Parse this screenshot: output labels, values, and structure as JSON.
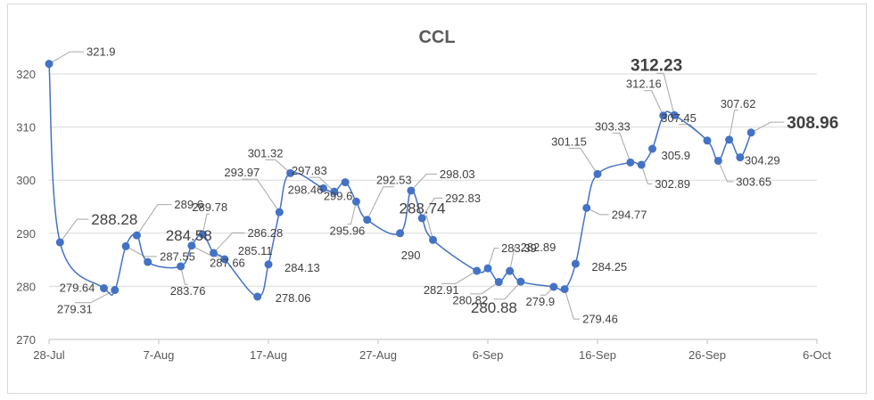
{
  "chart_data": {
    "type": "line",
    "title": "CCL",
    "xlabel": "",
    "ylabel": "",
    "x_ticks": [
      "28-Jul",
      "7-Aug",
      "17-Aug",
      "27-Aug",
      "6-Sep",
      "16-Sep",
      "26-Sep",
      "6-Oct"
    ],
    "y_ticks": [
      "270",
      "280",
      "290",
      "300",
      "310",
      "320"
    ],
    "ylim": [
      270,
      325
    ],
    "xlim": [
      "2021-07-28",
      "2021-10-06"
    ],
    "grid": true,
    "legend": "none",
    "series": [
      {
        "color": "#4472c4",
        "points": [
          {
            "date": "2021-07-28",
            "value": 321.9,
            "label": "321.9"
          },
          {
            "date": "2021-07-29",
            "value": 288.28,
            "label": "288.28",
            "emph": "large"
          },
          {
            "date": "2021-08-02",
            "value": 279.64,
            "label": "279.64"
          },
          {
            "date": "2021-08-03",
            "value": 279.31,
            "label": "279.31"
          },
          {
            "date": "2021-08-04",
            "value": 287.55,
            "label": "287.55"
          },
          {
            "date": "2021-08-05",
            "value": 289.6,
            "label": "289.6"
          },
          {
            "date": "2021-08-06",
            "value": 284.58,
            "label": "284.58",
            "emph": "large"
          },
          {
            "date": "2021-08-09",
            "value": 283.76,
            "label": "283.76"
          },
          {
            "date": "2021-08-10",
            "value": 287.66,
            "label": "287.66"
          },
          {
            "date": "2021-08-11",
            "value": 289.78,
            "label": "289.78"
          },
          {
            "date": "2021-08-12",
            "value": 286.28,
            "label": "286.28"
          },
          {
            "date": "2021-08-13",
            "value": 285.11,
            "label": "285.11"
          },
          {
            "date": "2021-08-16",
            "value": 278.06,
            "label": "278.06"
          },
          {
            "date": "2021-08-17",
            "value": 284.13,
            "label": "284.13"
          },
          {
            "date": "2021-08-18",
            "value": 293.97,
            "label": "293.97"
          },
          {
            "date": "2021-08-19",
            "value": 301.32,
            "label": "301.32"
          },
          {
            "date": "2021-08-22",
            "value": 298.46,
            "label": "298.46"
          },
          {
            "date": "2021-08-23",
            "value": 297.83,
            "label": "297.83"
          },
          {
            "date": "2021-08-24",
            "value": 299.6,
            "label": "299.6"
          },
          {
            "date": "2021-08-25",
            "value": 295.96,
            "label": "295.96"
          },
          {
            "date": "2021-08-26",
            "value": 292.53,
            "label": "292.53"
          },
          {
            "date": "2021-08-29",
            "value": 290,
            "label": "290"
          },
          {
            "date": "2021-08-30",
            "value": 298.03,
            "label": "298.03"
          },
          {
            "date": "2021-08-31",
            "value": 292.83,
            "label": "292.83"
          },
          {
            "date": "2021-09-01",
            "value": 288.74,
            "label": "288.74",
            "emph": "large"
          },
          {
            "date": "2021-09-05",
            "value": 282.91,
            "label": "282.91"
          },
          {
            "date": "2021-09-06",
            "value": 283.39,
            "label": "283.39"
          },
          {
            "date": "2021-09-07",
            "value": 280.82,
            "label": "280.82"
          },
          {
            "date": "2021-09-08",
            "value": 282.89,
            "label": "282.89"
          },
          {
            "date": "2021-09-09",
            "value": 280.88,
            "label": "280.88",
            "emph": "large"
          },
          {
            "date": "2021-09-12",
            "value": 279.9,
            "label": "279.9"
          },
          {
            "date": "2021-09-13",
            "value": 279.46,
            "label": "279.46"
          },
          {
            "date": "2021-09-14",
            "value": 284.25,
            "label": "284.25"
          },
          {
            "date": "2021-09-15",
            "value": 294.77,
            "label": "294.77"
          },
          {
            "date": "2021-09-16",
            "value": 301.15,
            "label": "301.15"
          },
          {
            "date": "2021-09-19",
            "value": 303.33,
            "label": "303.33"
          },
          {
            "date": "2021-09-20",
            "value": 302.89,
            "label": "302.89"
          },
          {
            "date": "2021-09-21",
            "value": 305.9,
            "label": "305.9"
          },
          {
            "date": "2021-09-22",
            "value": 312.16,
            "label": "312.16"
          },
          {
            "date": "2021-09-23",
            "value": 312.23,
            "label": "312.23",
            "emph": "bold"
          },
          {
            "date": "2021-09-26",
            "value": 307.45,
            "label": "307.45"
          },
          {
            "date": "2021-09-27",
            "value": 303.65,
            "label": "303.65"
          },
          {
            "date": "2021-09-28",
            "value": 307.62,
            "label": "307.62"
          },
          {
            "date": "2021-09-29",
            "value": 304.29,
            "label": "304.29"
          },
          {
            "date": "2021-09-30",
            "value": 308.96,
            "label": "308.96",
            "emph": "bold"
          }
        ]
      }
    ]
  }
}
